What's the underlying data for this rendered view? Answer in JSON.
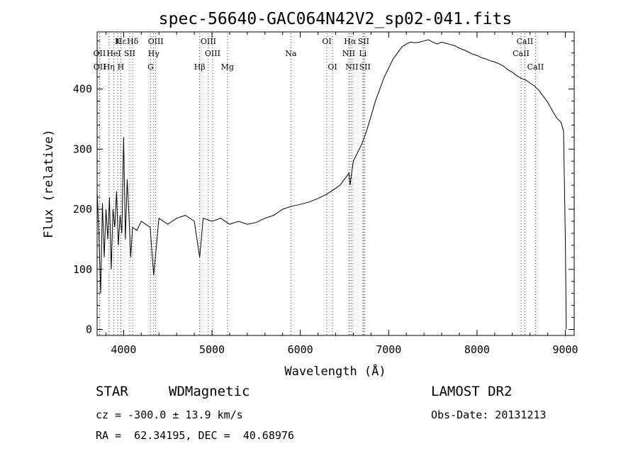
{
  "chart_data": {
    "type": "line",
    "title": "spec-56640-GAC064N42V2_sp02-041.fits",
    "xlabel": "Wavelength (Å)",
    "ylabel": "Flux (relative)",
    "xlim": [
      3700,
      9100
    ],
    "ylim": [
      -10,
      495
    ],
    "xticks": [
      4000,
      5000,
      6000,
      7000,
      8000,
      9000
    ],
    "yticks": [
      0,
      100,
      200,
      300,
      400
    ],
    "grid": false,
    "series": [
      {
        "x": [
          3700,
          3720,
          3740,
          3760,
          3780,
          3800,
          3820,
          3840,
          3860,
          3880,
          3900,
          3920,
          3940,
          3960,
          3980,
          4000,
          4020,
          4040,
          4060,
          4080,
          4100,
          4150,
          4200,
          4250,
          4300,
          4340,
          4400,
          4500,
          4600,
          4700,
          4800,
          4861,
          4900,
          5000,
          5100,
          5200,
          5300,
          5400,
          5500,
          5600,
          5700,
          5800,
          5900,
          6000,
          6100,
          6200,
          6300,
          6350,
          6400,
          6450,
          6500,
          6550,
          6563,
          6600,
          6650,
          6700,
          6750,
          6800,
          6850,
          6900,
          6950,
          7000,
          7050,
          7100,
          7150,
          7200,
          7250,
          7300,
          7350,
          7400,
          7450,
          7500,
          7550,
          7600,
          7650,
          7700,
          7750,
          7800,
          7850,
          7900,
          7950,
          8000,
          8050,
          8100,
          8150,
          8200,
          8250,
          8300,
          8350,
          8400,
          8450,
          8500,
          8550,
          8600,
          8650,
          8700,
          8750,
          8800,
          8850,
          8900,
          8950,
          8980,
          9000,
          9010
        ],
        "y": [
          230,
          160,
          60,
          210,
          120,
          200,
          150,
          220,
          100,
          200,
          170,
          230,
          140,
          190,
          160,
          320,
          150,
          250,
          190,
          120,
          170,
          165,
          180,
          175,
          170,
          90,
          185,
          175,
          185,
          190,
          180,
          120,
          185,
          180,
          185,
          175,
          180,
          175,
          178,
          185,
          190,
          200,
          205,
          208,
          212,
          218,
          225,
          230,
          235,
          240,
          250,
          260,
          240,
          280,
          295,
          310,
          330,
          355,
          380,
          400,
          420,
          435,
          450,
          460,
          470,
          475,
          478,
          477,
          478,
          480,
          482,
          478,
          475,
          478,
          476,
          474,
          472,
          468,
          465,
          462,
          458,
          456,
          452,
          450,
          447,
          445,
          442,
          438,
          432,
          428,
          422,
          418,
          415,
          410,
          405,
          398,
          388,
          378,
          365,
          352,
          345,
          330,
          150,
          0
        ]
      }
    ],
    "line_ids": [
      {
        "label": "Hε",
        "x": 3970,
        "row": 0
      },
      {
        "label": "K",
        "x": 3934,
        "row": 0
      },
      {
        "label": "Hδ",
        "x": 4102,
        "row": 0
      },
      {
        "label": "OIII",
        "x": 4363,
        "row": 0
      },
      {
        "label": "OIII",
        "x": 4959,
        "row": 0
      },
      {
        "label": "OI",
        "x": 6300,
        "row": 0
      },
      {
        "label": "Hα",
        "x": 6563,
        "row": 0
      },
      {
        "label": "SII",
        "x": 6716,
        "row": 0
      },
      {
        "label": "CaII",
        "x": 8542,
        "row": 0
      },
      {
        "label": "OII",
        "x": 3727,
        "row": 1
      },
      {
        "label": "HeI",
        "x": 3889,
        "row": 1
      },
      {
        "label": "SII",
        "x": 4069,
        "row": 1
      },
      {
        "label": "Hγ",
        "x": 4340,
        "row": 1
      },
      {
        "label": "OIII",
        "x": 5007,
        "row": 1
      },
      {
        "label": "Na",
        "x": 5893,
        "row": 1
      },
      {
        "label": "NII",
        "x": 6548,
        "row": 1
      },
      {
        "label": "Li",
        "x": 6708,
        "row": 1
      },
      {
        "label": "CaII",
        "x": 8498,
        "row": 1
      },
      {
        "label": "OII",
        "x": 3729,
        "row": 2
      },
      {
        "label": "Hη",
        "x": 3835,
        "row": 2
      },
      {
        "label": "H",
        "x": 3968,
        "row": 2
      },
      {
        "label": "G",
        "x": 4305,
        "row": 2
      },
      {
        "label": "Hβ",
        "x": 4861,
        "row": 2
      },
      {
        "label": "Mg",
        "x": 5175,
        "row": 2
      },
      {
        "label": "OI",
        "x": 6364,
        "row": 2
      },
      {
        "label": "NII",
        "x": 6583,
        "row": 2
      },
      {
        "label": "SII",
        "x": 6731,
        "row": 2
      },
      {
        "label": "CaII",
        "x": 8662,
        "row": 2
      }
    ]
  },
  "info": {
    "object_class": "STAR",
    "subclass": "WDMagnetic",
    "survey": "LAMOST DR2",
    "redshift_line": "cz = -300.0 ± 13.9 km/s",
    "obs_date_line": "Obs-Date: 20131213",
    "coords_line": "RA =  62.34195, DEC =  40.68976"
  },
  "colors": {
    "line_marker": "#cc0000",
    "spectrum": "#000000"
  }
}
